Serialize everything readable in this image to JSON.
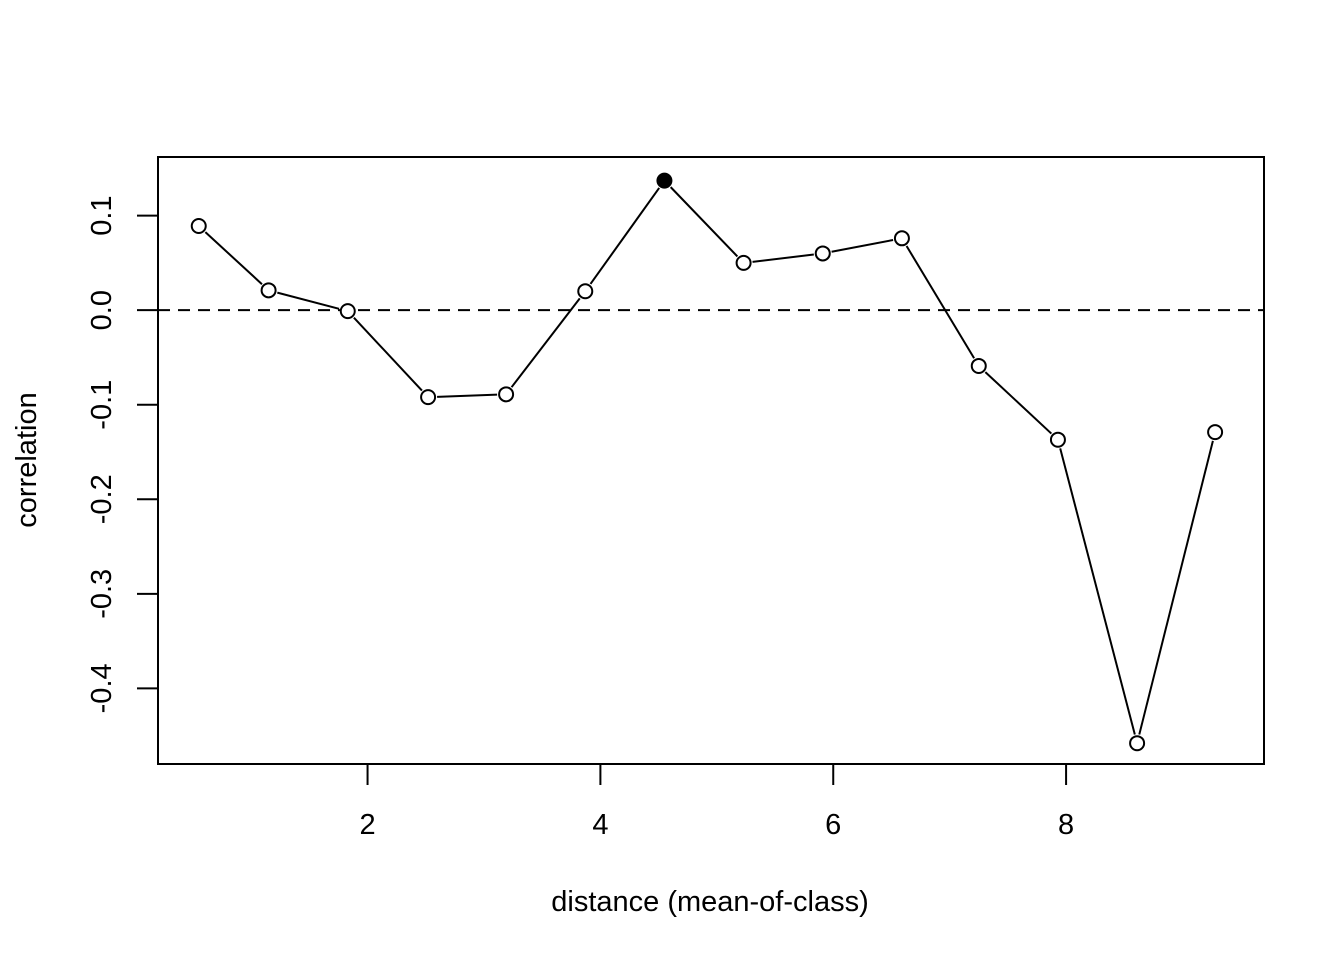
{
  "chart_data": {
    "type": "line",
    "title": "",
    "xlabel": "distance (mean-of-class)",
    "ylabel": "correlation",
    "xlim": [
      0.2,
      9.7
    ],
    "ylim": [
      -0.48,
      0.162
    ],
    "x_ticks": [
      2,
      4,
      6,
      8
    ],
    "x_tick_labels": [
      "2",
      "4",
      "6",
      "8"
    ],
    "y_ticks": [
      -0.4,
      -0.3,
      -0.2,
      -0.1,
      0.0,
      0.1
    ],
    "y_tick_labels": [
      "-0.4",
      "-0.3",
      "-0.2",
      "-0.1",
      "0.0",
      "0.1"
    ],
    "reference_line": {
      "y": 0.0,
      "style": "dashed"
    },
    "grid": false,
    "legend": "none",
    "series": [
      {
        "x": [
          0.55,
          1.15,
          1.83,
          2.52,
          3.19,
          3.87,
          4.55,
          5.23,
          5.91,
          6.59,
          7.25,
          7.93,
          8.61,
          9.28
        ],
        "y": [
          0.089,
          0.021,
          -0.001,
          -0.092,
          -0.089,
          0.02,
          0.137,
          0.05,
          0.06,
          0.076,
          -0.059,
          -0.137,
          -0.458,
          -0.129
        ],
        "filled": [
          false,
          false,
          false,
          false,
          false,
          false,
          true,
          false,
          false,
          false,
          false,
          false,
          false,
          false
        ]
      }
    ]
  }
}
